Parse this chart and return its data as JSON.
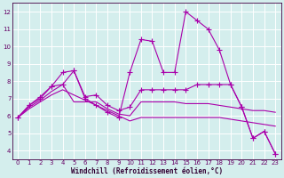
{
  "xlabel": "Windchill (Refroidissement éolien,°C)",
  "background_color": "#d4eeed",
  "grid_color": "#ffffff",
  "line_color": "#aa00aa",
  "xlim": [
    -0.5,
    23.5
  ],
  "ylim": [
    3.5,
    12.5
  ],
  "xticks": [
    0,
    1,
    2,
    3,
    4,
    5,
    6,
    7,
    8,
    9,
    10,
    11,
    12,
    13,
    14,
    15,
    16,
    17,
    18,
    19,
    20,
    21,
    22,
    23
  ],
  "yticks": [
    4,
    5,
    6,
    7,
    8,
    9,
    10,
    11,
    12
  ],
  "lines": [
    {
      "x": [
        0,
        1,
        2,
        3,
        4,
        5,
        6,
        7,
        8,
        9,
        10,
        11,
        12,
        13,
        14,
        15,
        16,
        17,
        18,
        19,
        20,
        21,
        22,
        23
      ],
      "y": [
        5.9,
        6.6,
        7.0,
        7.7,
        8.5,
        8.6,
        7.0,
        6.6,
        6.2,
        5.9,
        8.5,
        10.4,
        10.3,
        8.5,
        8.5,
        12.0,
        11.5,
        11.0,
        9.8,
        7.8,
        6.5,
        4.7,
        5.1,
        3.8
      ],
      "marker": true
    },
    {
      "x": [
        0,
        1,
        2,
        3,
        4,
        5,
        6,
        7,
        8,
        9,
        10,
        11,
        12,
        13,
        14,
        15,
        16,
        17,
        18,
        19,
        20,
        21,
        22,
        23
      ],
      "y": [
        5.9,
        6.6,
        7.1,
        7.7,
        7.8,
        8.6,
        7.1,
        7.2,
        6.6,
        6.3,
        6.5,
        7.5,
        7.5,
        7.5,
        7.5,
        7.5,
        7.8,
        7.8,
        7.8,
        7.8,
        6.5,
        4.7,
        5.1,
        3.8
      ],
      "marker": true
    },
    {
      "x": [
        0,
        1,
        2,
        3,
        4,
        5,
        6,
        7,
        8,
        9,
        10,
        11,
        12,
        13,
        14,
        15,
        16,
        17,
        18,
        19,
        20,
        21,
        22,
        23
      ],
      "y": [
        5.9,
        6.5,
        6.9,
        7.4,
        7.8,
        6.8,
        6.8,
        6.8,
        6.4,
        6.1,
        6.0,
        6.8,
        6.8,
        6.8,
        6.8,
        6.7,
        6.7,
        6.7,
        6.6,
        6.5,
        6.4,
        6.3,
        6.3,
        6.2
      ],
      "marker": false
    },
    {
      "x": [
        0,
        1,
        2,
        3,
        4,
        5,
        6,
        7,
        8,
        9,
        10,
        11,
        12,
        13,
        14,
        15,
        16,
        17,
        18,
        19,
        20,
        21,
        22,
        23
      ],
      "y": [
        5.9,
        6.4,
        6.8,
        7.2,
        7.5,
        7.2,
        6.9,
        6.6,
        6.3,
        6.0,
        5.7,
        5.9,
        5.9,
        5.9,
        5.9,
        5.9,
        5.9,
        5.9,
        5.9,
        5.8,
        5.7,
        5.6,
        5.5,
        5.4
      ],
      "marker": false
    }
  ]
}
